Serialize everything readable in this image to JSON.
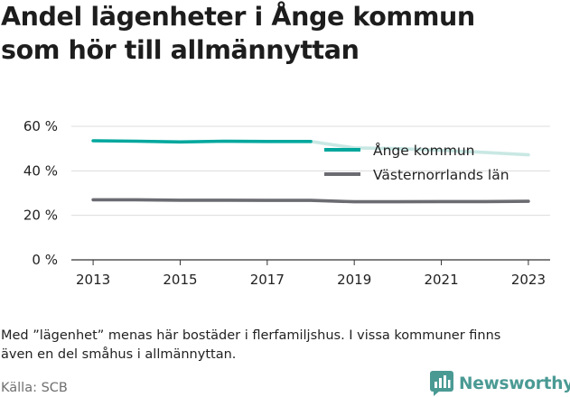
{
  "title_lines": [
    "Andel lägenheter i Ånge kommun",
    "som hör till allmännyttan"
  ],
  "note_lines": [
    "Med ”lägenhet” menas här bostäder i flerfamiljshus. I vissa kommuner finns",
    "även en del småhus i allmännyttan."
  ],
  "source": "Källa: SCB",
  "brand": {
    "name": "Newsworthy",
    "icon": "newsworthy-logo-icon",
    "color": "#4a9a94"
  },
  "chart_data": {
    "type": "line",
    "title": "",
    "xlabel": "",
    "ylabel": "",
    "x": [
      2013,
      2014,
      2015,
      2016,
      2017,
      2018,
      2019,
      2020,
      2021,
      2022,
      2023
    ],
    "xticks": [
      2013,
      2015,
      2017,
      2019,
      2021,
      2023
    ],
    "xtick_labels": [
      "2013",
      "2015",
      "2017",
      "2019",
      "2021",
      "2023"
    ],
    "xlim": [
      2012.5,
      2023.5
    ],
    "yticks": [
      0,
      20,
      40,
      60
    ],
    "ytick_labels": [
      "0 %",
      "20 %",
      "40 %",
      "60 %"
    ],
    "ylim": [
      0,
      60
    ],
    "grid": true,
    "legend_position": "inside-right",
    "series": [
      {
        "name": "Ånge kommun",
        "color": "#00a79d",
        "faded_color": "#c9e8e4",
        "values": [
          53.5,
          53.3,
          53.0,
          53.3,
          53.2,
          53.2,
          50.3,
          50.0,
          49.2,
          48.3,
          47.2
        ],
        "faded_from_x": 2018
      },
      {
        "name": "Västernorrlands län",
        "color": "#6b6b72",
        "values": [
          27.0,
          27.0,
          26.8,
          26.8,
          26.7,
          26.7,
          26.1,
          26.1,
          26.2,
          26.2,
          26.3
        ]
      }
    ]
  }
}
